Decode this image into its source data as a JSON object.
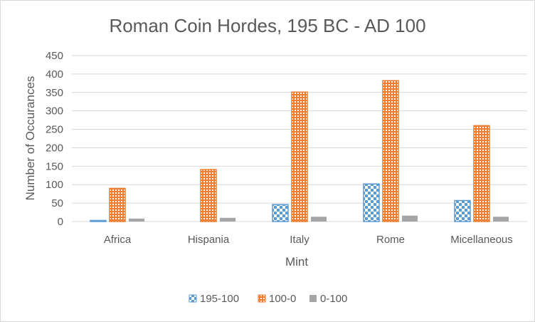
{
  "chart_data": {
    "type": "bar",
    "title": "Roman Coin Hordes, 195 BC - AD 100",
    "xlabel": "Mint",
    "ylabel": "Number of Occurances",
    "categories": [
      "Africa",
      "Hispania",
      "Italy",
      "Rome",
      "Micellaneous"
    ],
    "series": [
      {
        "name": "195-100",
        "values": [
          3,
          0,
          46,
          102,
          57
        ],
        "color": "#5b9bd5",
        "pattern": "checker"
      },
      {
        "name": "100-0",
        "values": [
          90,
          141,
          351,
          382,
          260
        ],
        "color": "#ed7d31",
        "pattern": "dots"
      },
      {
        "name": "0-100",
        "values": [
          8,
          10,
          13,
          16,
          13
        ],
        "color": "#a5a5a5",
        "pattern": "solid"
      }
    ],
    "ylim": [
      0,
      450
    ],
    "yticks": [
      0,
      50,
      100,
      150,
      200,
      250,
      300,
      350,
      400,
      450
    ],
    "grid": true,
    "legend_position": "bottom"
  }
}
